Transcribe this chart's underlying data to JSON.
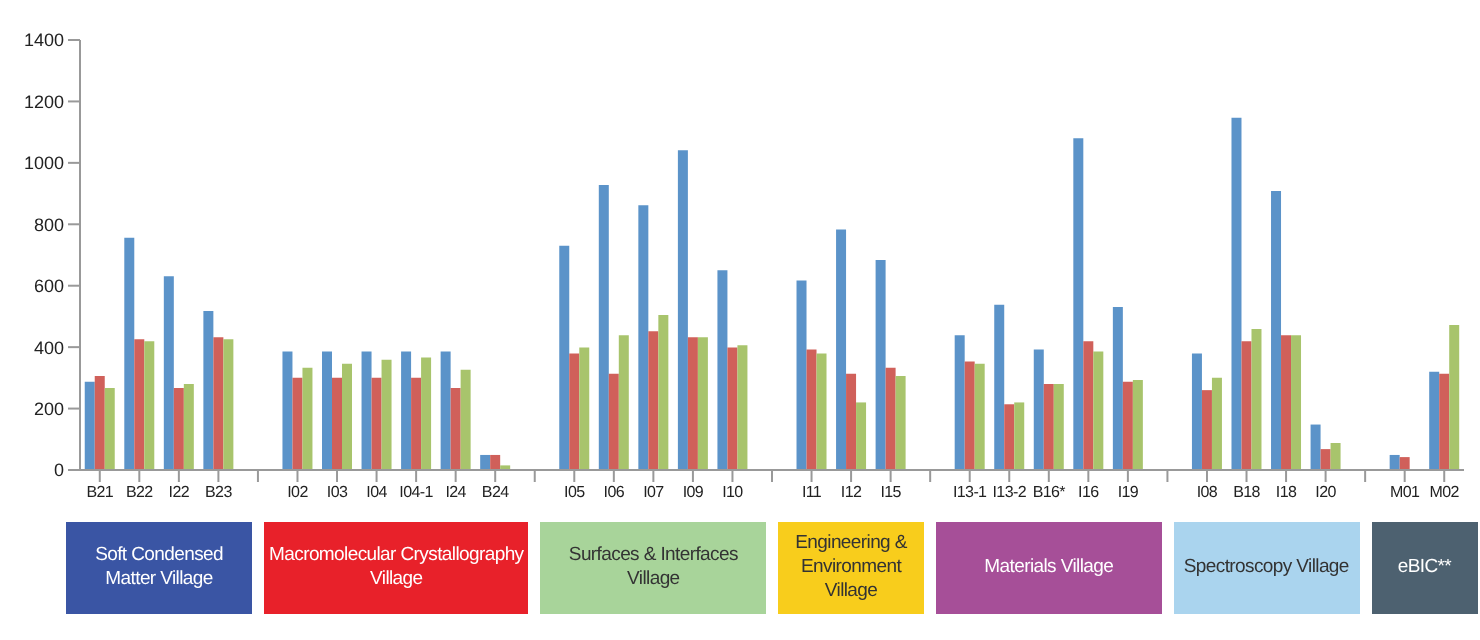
{
  "chart_data": {
    "type": "bar",
    "categories": [
      "B21",
      "B22",
      "I22",
      "B23",
      null,
      "I02",
      "I03",
      "I04",
      "I04-1",
      "I24",
      "B24",
      null,
      "I05",
      "I06",
      "I07",
      "I09",
      "I10",
      null,
      "I11",
      "I12",
      "I15",
      null,
      "I13-1",
      "I13-2",
      "B16*",
      "I16",
      "I19",
      null,
      "I08",
      "B18",
      "I18",
      "I20",
      null,
      "M01",
      "M02"
    ],
    "series": [
      {
        "color": "#5b93c9",
        "values": [
          287,
          756,
          631,
          518,
          null,
          386,
          386,
          386,
          386,
          386,
          49,
          null,
          730,
          928,
          862,
          1041,
          650,
          null,
          617,
          783,
          684,
          null,
          439,
          538,
          392,
          1080,
          531,
          null,
          379,
          1147,
          908,
          148,
          null,
          49,
          320
        ]
      },
      {
        "color": "#d0605a",
        "values": [
          306,
          426,
          267,
          432,
          null,
          300,
          300,
          300,
          300,
          267,
          49,
          null,
          379,
          313,
          452,
          432,
          399,
          null,
          392,
          313,
          333,
          null,
          353,
          214,
          280,
          419,
          287,
          null,
          260,
          419,
          439,
          68,
          null,
          42,
          313
        ]
      },
      {
        "color": "#a8c46c",
        "values": [
          267,
          419,
          280,
          426,
          null,
          333,
          346,
          359,
          366,
          326,
          15,
          null,
          399,
          439,
          505,
          432,
          406,
          null,
          379,
          220,
          306,
          null,
          346,
          220,
          280,
          386,
          293,
          null,
          300,
          459,
          439,
          88,
          null,
          null,
          472
        ]
      }
    ],
    "ylim": [
      0,
      1400
    ],
    "yticks": [
      0,
      200,
      400,
      600,
      800,
      1000,
      1200,
      1400
    ],
    "grid": false,
    "legend": false,
    "annotations": [
      "Soft Condensed Matter Village",
      "Macromolecular Crystallography Village",
      "Surfaces & Interfaces Village",
      "Engineering & Environment Village",
      "Materials Village",
      "Spectroscopy Village",
      "eBIC**"
    ]
  }
}
